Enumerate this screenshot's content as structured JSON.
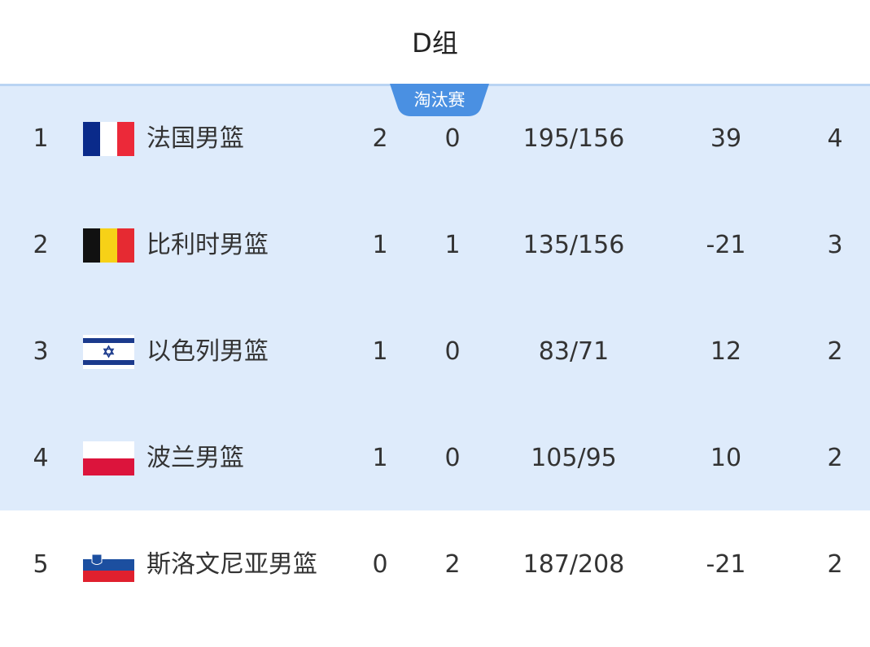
{
  "title": "D组",
  "badge": "淘汰赛",
  "colors": {
    "highlight_bg": "#deebfb",
    "badge": "#4a90e2"
  },
  "rows": [
    {
      "rank": "1",
      "flag": "france-flag",
      "team": "法国男篮",
      "wins": "2",
      "losses": "0",
      "score": "195/156",
      "diff": "39",
      "points": "4",
      "highlighted": true
    },
    {
      "rank": "2",
      "flag": "belgium-flag",
      "team": "比利时男篮",
      "wins": "1",
      "losses": "1",
      "score": "135/156",
      "diff": "-21",
      "points": "3",
      "highlighted": true
    },
    {
      "rank": "3",
      "flag": "israel-flag",
      "team": "以色列男篮",
      "wins": "1",
      "losses": "0",
      "score": "83/71",
      "diff": "12",
      "points": "2",
      "highlighted": true
    },
    {
      "rank": "4",
      "flag": "poland-flag",
      "team": "波兰男篮",
      "wins": "1",
      "losses": "0",
      "score": "105/95",
      "diff": "10",
      "points": "2",
      "highlighted": true
    },
    {
      "rank": "5",
      "flag": "slovenia-flag",
      "team": "斯洛文尼亚男篮",
      "wins": "0",
      "losses": "2",
      "score": "187/208",
      "diff": "-21",
      "points": "2",
      "highlighted": false
    }
  ]
}
